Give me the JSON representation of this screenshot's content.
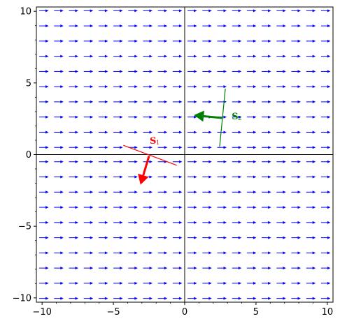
{
  "chart_data": {
    "type": "vector-field",
    "xlim": [
      -10.4,
      10.4
    ],
    "ylim": [
      -10.3,
      10.3
    ],
    "x_ticks": [
      -10,
      -5,
      0,
      5,
      10
    ],
    "y_ticks": [
      -10,
      -5,
      0,
      5,
      10
    ],
    "x_tick_labels": [
      "−10",
      "−5",
      "0",
      "5",
      "10"
    ],
    "y_tick_labels": [
      "−10",
      "−5",
      "0",
      "5",
      "10"
    ],
    "axes_through_origin": true,
    "grid": false,
    "field": {
      "color": "#0000ff",
      "direction": [
        1,
        0
      ],
      "x_positions": [
        -9.88,
        -8.84,
        -7.8,
        -6.76,
        -5.72,
        -4.68,
        -3.64,
        -2.6,
        -1.56,
        -0.52,
        0.52,
        1.56,
        2.6,
        3.64,
        4.68,
        5.72,
        6.76,
        7.8,
        8.84,
        9.88
      ],
      "y_positions": [
        10.04,
        8.98,
        7.92,
        6.86,
        5.8,
        4.74,
        3.68,
        2.62,
        1.56,
        0.5,
        -0.5,
        -1.56,
        -2.62,
        -3.68,
        -4.74,
        -5.8,
        -6.86,
        -7.92,
        -8.98,
        -10.04
      ]
    },
    "segments": [
      {
        "label": "S",
        "subscript": "1",
        "color": "#ff0000",
        "line": [
          [
            -4.3,
            0.65
          ],
          [
            -0.55,
            -0.75
          ]
        ],
        "arrow_from": [
          -2.5,
          -0.1
        ],
        "arrow_to": [
          -3.1,
          -2.1
        ],
        "label_at": [
          -2.45,
          0.75
        ]
      },
      {
        "label": "S",
        "subscript": "2",
        "color": "#008000",
        "line": [
          [
            2.45,
            0.55
          ],
          [
            2.85,
            4.6
          ]
        ],
        "arrow_from": [
          2.65,
          2.55
        ],
        "arrow_to": [
          0.65,
          2.75
        ],
        "label_at": [
          3.3,
          2.45
        ]
      }
    ]
  }
}
